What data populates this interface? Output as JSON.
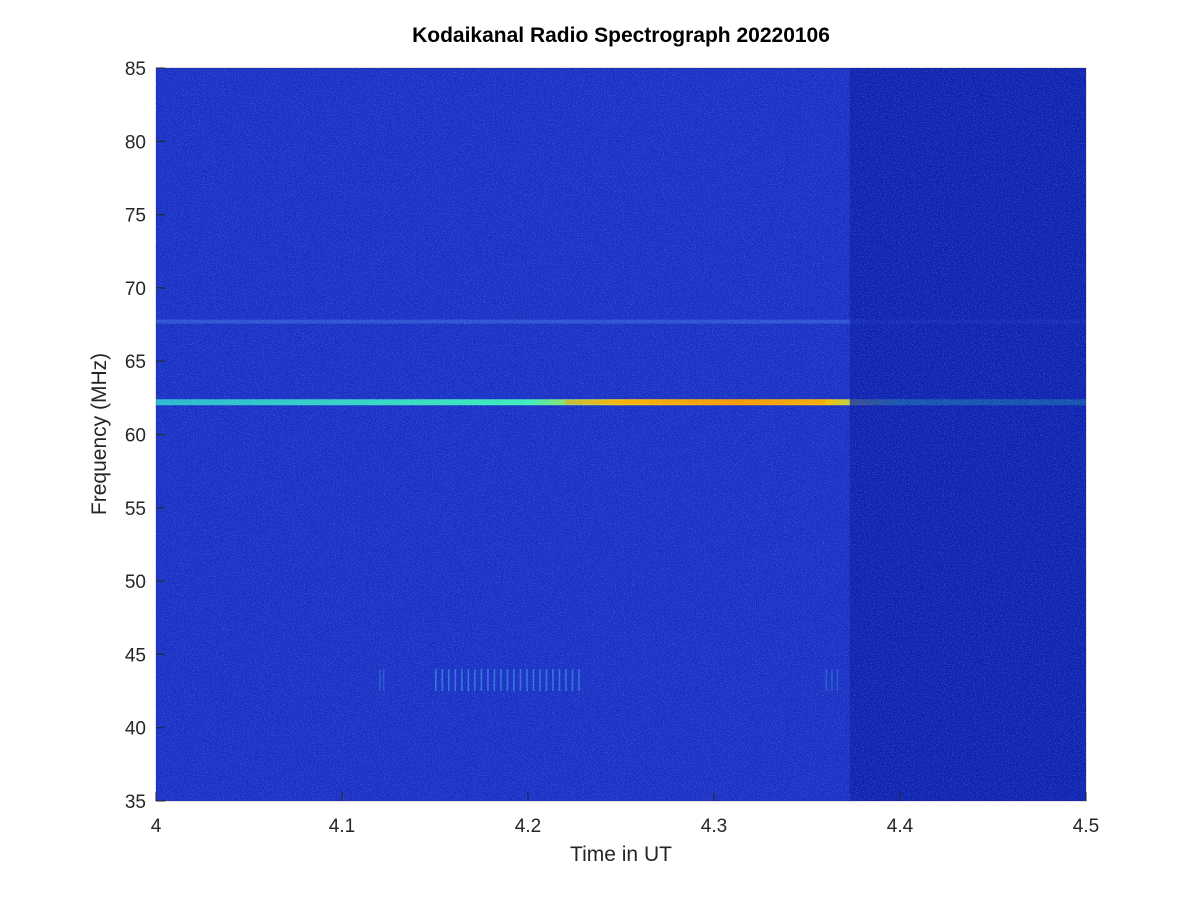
{
  "chart_data": {
    "type": "heatmap",
    "title": "Kodaikanal Radio Spectrograph  20220106",
    "xlabel": "Time in UT",
    "ylabel": "Frequency (MHz)",
    "xlim": [
      4,
      4.5
    ],
    "ylim": [
      35,
      85
    ],
    "x_ticks": [
      "4",
      "4.1",
      "4.2",
      "4.3",
      "4.4",
      "4.5"
    ],
    "y_ticks": [
      "35",
      "40",
      "45",
      "50",
      "55",
      "60",
      "65",
      "70",
      "75",
      "80",
      "85"
    ],
    "x_tick_values": [
      4,
      4.1,
      4.2,
      4.3,
      4.4,
      4.5
    ],
    "y_tick_values": [
      35,
      40,
      45,
      50,
      55,
      60,
      65,
      70,
      75,
      80,
      85
    ],
    "colormap": [
      "#00008f",
      "#0000ff",
      "#00ffff",
      "#ffff00",
      "#ff0000"
    ],
    "background_color": "#1a2fc4",
    "features": [
      {
        "kind": "horizontal-band",
        "frequency_mhz": 62.2,
        "time_range": [
          4.0,
          4.5
        ],
        "peak_range": [
          4.22,
          4.36
        ],
        "peak_color": "#ff9a00",
        "base_color": "#38e6c8"
      },
      {
        "kind": "horizontal-faint-line",
        "frequency_mhz": 67.7,
        "time_range": [
          4.0,
          4.5
        ],
        "color": "#3a6bdc"
      },
      {
        "kind": "vertical-bursts",
        "frequency_range": [
          42.5,
          44.0
        ],
        "time_range": [
          4.15,
          4.23
        ],
        "color": "#3b8fe0"
      },
      {
        "kind": "darker-region",
        "time_range": [
          4.373,
          4.5
        ],
        "frequency_range": [
          35,
          85
        ],
        "color": "#0c1ea8"
      }
    ]
  }
}
